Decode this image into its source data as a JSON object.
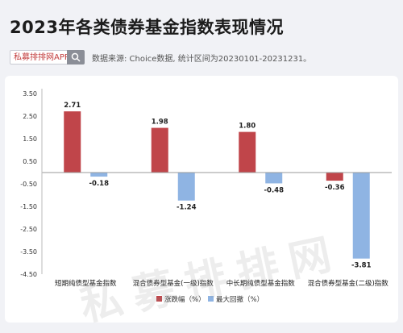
{
  "header": {
    "title": "2023年各类债券基金指数表现情况",
    "search_label": "私募排排网APP",
    "source_text": "数据来源: Choice数据, 统计区间为20230101-20231231。"
  },
  "watermark": "私募排排网",
  "chart_data": {
    "type": "bar",
    "categories": [
      "短期纯债型基金指数",
      "混合债券型基金(一级)指数",
      "中长期纯债型基金指数",
      "混合债券型基金(二级)指数"
    ],
    "series": [
      {
        "name": "涨跌幅（%）",
        "values": [
          2.71,
          1.98,
          1.8,
          -0.36
        ],
        "color": "#c0454a"
      },
      {
        "name": "最大回撤（%）",
        "values": [
          -0.18,
          -1.24,
          -0.48,
          -3.81
        ],
        "color": "#8fb4e3"
      }
    ],
    "ylim": [
      -4.5,
      3.5
    ],
    "yticks": [
      3.5,
      2.5,
      1.5,
      0.5,
      -0.5,
      -1.5,
      -2.5,
      -3.5,
      -4.5
    ],
    "ytick_labels": [
      "3.50",
      "2.50",
      "1.50",
      "0.50",
      "-0.50",
      "-1.50",
      "-2.50",
      "-3.50",
      "-4.50"
    ],
    "value_labels": [
      [
        "2.71",
        "1.98",
        "1.80",
        "-0.36"
      ],
      [
        "-0.18",
        "-1.24",
        "-0.48",
        "-3.81"
      ]
    ],
    "legend_position": "bottom",
    "grid": false
  }
}
